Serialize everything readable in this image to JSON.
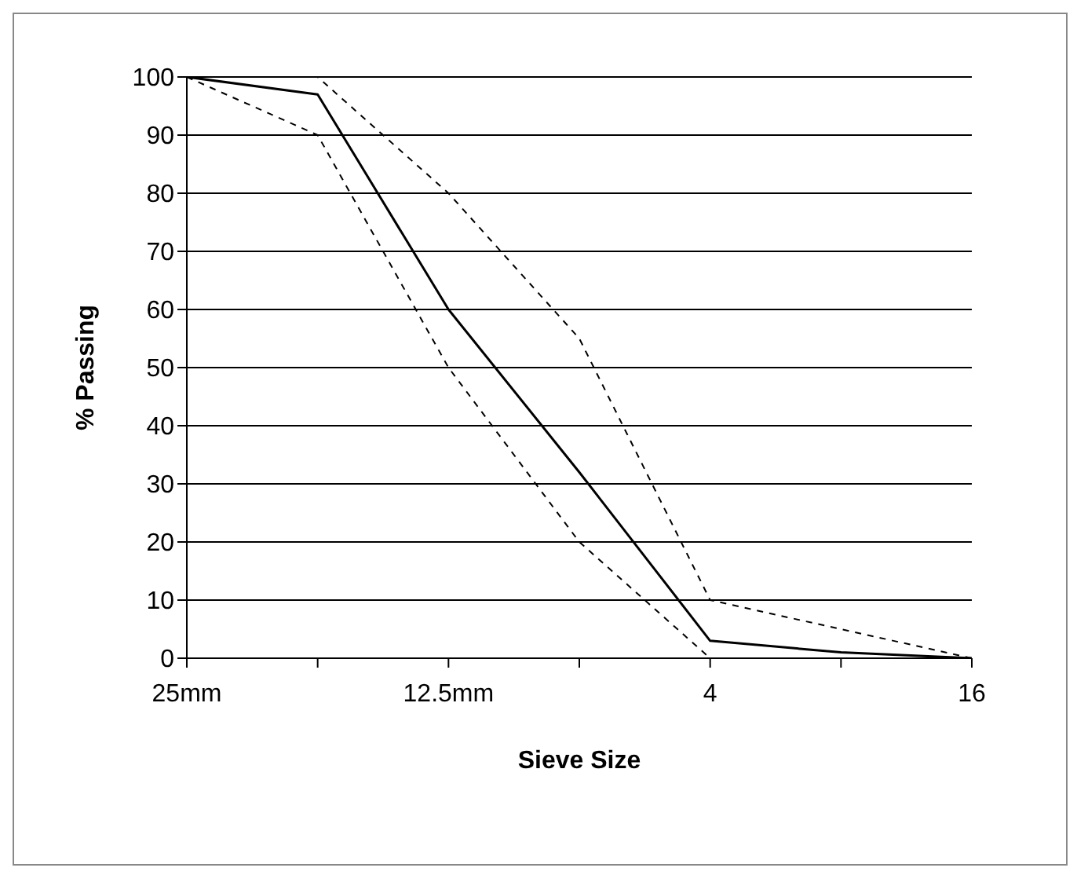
{
  "chart_data": {
    "type": "line",
    "xlabel": "Sieve Size",
    "ylabel": "% Passing",
    "categories": [
      "25mm",
      null,
      "12.5mm",
      null,
      "4",
      null,
      "16"
    ],
    "series": [
      {
        "color": "#000000",
        "line_style": "solid",
        "values": [
          100,
          97,
          60,
          32,
          3,
          1,
          0
        ]
      },
      {
        "color": "#000000",
        "line_style": "dashed",
        "values": [
          100,
          100,
          80,
          55,
          10,
          5,
          0
        ]
      },
      {
        "color": "#000000",
        "line_style": "dashed",
        "values": [
          100,
          90,
          50,
          20,
          0,
          0,
          0
        ]
      }
    ],
    "ylim": [
      0,
      100
    ],
    "yticks": [
      0,
      10,
      20,
      30,
      40,
      50,
      60,
      70,
      80,
      90,
      100
    ],
    "grid": "y",
    "marker": "none",
    "legend": false
  }
}
